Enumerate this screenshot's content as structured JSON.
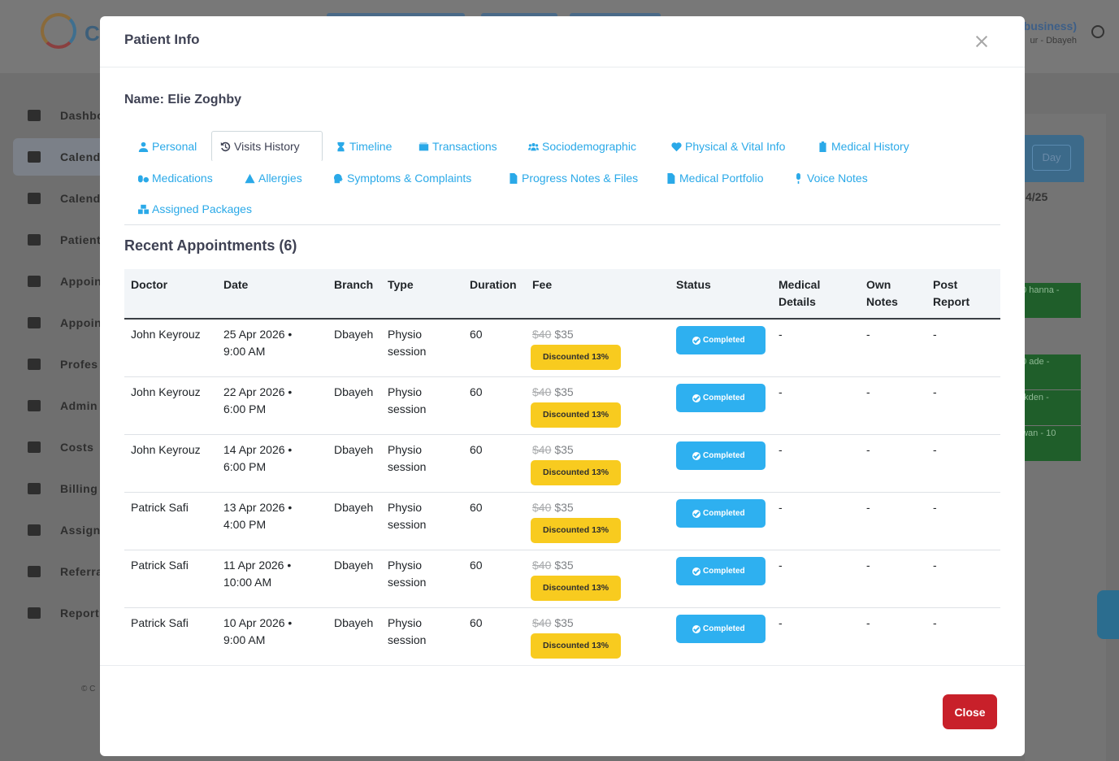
{
  "background": {
    "business": "(business)",
    "branch": "ur - Dbayeh",
    "sidebar": [
      "Dashbo",
      "Calend",
      "Calend",
      "Patient",
      "Appoin",
      "Appoin",
      "Profes",
      "Admin",
      "Costs",
      "Billing",
      "Assign",
      "Referra",
      "Report"
    ],
    "day_button": "Day",
    "date_fragment": "4/25",
    "events": [
      "00 hanna -",
      "00 ade -",
      "0 kden -",
      "hwan - 10"
    ],
    "copyright": "© C"
  },
  "modal": {
    "title": "Patient Info",
    "name_line": "Name: Elie Zoghby",
    "tabs": [
      {
        "label": "Personal",
        "icon": "user-icon"
      },
      {
        "label": "Visits History",
        "icon": "history-icon"
      },
      {
        "label": "Timeline",
        "icon": "hourglass-icon"
      },
      {
        "label": "Transactions",
        "icon": "wallet-icon"
      },
      {
        "label": "Sociodemographic",
        "icon": "users-icon"
      },
      {
        "label": "Physical & Vital Info",
        "icon": "heart-pulse-icon"
      },
      {
        "label": "Medical History",
        "icon": "notes-medical-icon"
      },
      {
        "label": "Medications",
        "icon": "pills-icon"
      },
      {
        "label": "Allergies",
        "icon": "warning-icon"
      },
      {
        "label": "Symptoms & Complaints",
        "icon": "head-side-cough-icon"
      },
      {
        "label": "Progress Notes & Files",
        "icon": "file-icon"
      },
      {
        "label": "Medical Portfolio",
        "icon": "file-medical-icon"
      },
      {
        "label": "Voice Notes",
        "icon": "microphone-icon"
      },
      {
        "label": "Assigned Packages",
        "icon": "boxes-icon"
      }
    ],
    "section_title": "Recent Appointments (6)",
    "columns": [
      "Doctor",
      "Date",
      "Branch",
      "Type",
      "Duration",
      "Fee",
      "Status",
      "Medical Details",
      "Own Notes",
      "Post Report"
    ],
    "rows": [
      {
        "doctor": "John Keyrouz",
        "date1": "25 Apr 2026 •",
        "date2": "9:00 AM",
        "branch": "Dbayeh",
        "type1": "Physio",
        "type2": "session",
        "duration": "60",
        "old_fee": "$40",
        "new_fee": "$35",
        "discount": "Discounted 13%",
        "status": "Completed",
        "medical": "-",
        "notes": "-",
        "report": "-"
      },
      {
        "doctor": "John Keyrouz",
        "date1": "22 Apr 2026 •",
        "date2": "6:00 PM",
        "branch": "Dbayeh",
        "type1": "Physio",
        "type2": "session",
        "duration": "60",
        "old_fee": "$40",
        "new_fee": "$35",
        "discount": "Discounted 13%",
        "status": "Completed",
        "medical": "-",
        "notes": "-",
        "report": "-"
      },
      {
        "doctor": "John Keyrouz",
        "date1": "14 Apr 2026 •",
        "date2": "6:00 PM",
        "branch": "Dbayeh",
        "type1": "Physio",
        "type2": "session",
        "duration": "60",
        "old_fee": "$40",
        "new_fee": "$35",
        "discount": "Discounted 13%",
        "status": "Completed",
        "medical": "-",
        "notes": "-",
        "report": "-"
      },
      {
        "doctor": "Patrick Safi",
        "date1": "13 Apr 2026 •",
        "date2": "4:00 PM",
        "branch": "Dbayeh",
        "type1": "Physio",
        "type2": "session",
        "duration": "60",
        "old_fee": "$40",
        "new_fee": "$35",
        "discount": "Discounted 13%",
        "status": "Completed",
        "medical": "-",
        "notes": "-",
        "report": "-"
      },
      {
        "doctor": "Patrick Safi",
        "date1": "11 Apr 2026 •",
        "date2": "10:00 AM",
        "branch": "Dbayeh",
        "type1": "Physio",
        "type2": "session",
        "duration": "60",
        "old_fee": "$40",
        "new_fee": "$35",
        "discount": "Discounted 13%",
        "status": "Completed",
        "medical": "-",
        "notes": "-",
        "report": "-"
      },
      {
        "doctor": "Patrick Safi",
        "date1": "10 Apr 2026 •",
        "date2": "9:00 AM",
        "branch": "Dbayeh",
        "type1": "Physio",
        "type2": "session",
        "duration": "60",
        "old_fee": "$40",
        "new_fee": "$35",
        "discount": "Discounted 13%",
        "status": "Completed",
        "medical": "-",
        "notes": "-",
        "report": "-"
      }
    ],
    "close_label": "Close"
  },
  "colors": {
    "tab_link": "#2aa9e8",
    "status_completed": "#2eb0f0",
    "discount_badge": "#f8cb1f",
    "close_button": "#c8202a"
  }
}
